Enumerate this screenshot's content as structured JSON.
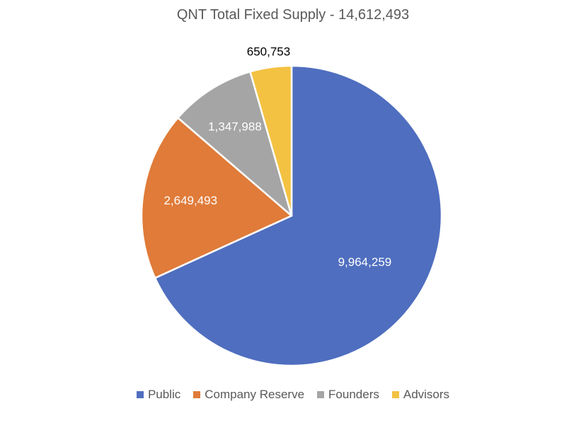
{
  "chart_data": {
    "type": "pie",
    "title": "QNT Total Fixed Supply - 14,612,493",
    "categories": [
      "Public",
      "Company Reserve",
      "Founders",
      "Advisors"
    ],
    "values": [
      9964259,
      2649493,
      1347988,
      650753
    ],
    "data_labels": [
      "9,964,259",
      "2,649,493",
      "1,347,988",
      "650,753"
    ],
    "colors": [
      "#4F6EBF",
      "#E07B39",
      "#A5A5A5",
      "#F4C242"
    ],
    "label_colors": [
      "#ffffff",
      "#ffffff",
      "#ffffff",
      "#000000"
    ],
    "start_angle_deg": 0,
    "direction": "clockwise",
    "legend_position": "bottom"
  }
}
